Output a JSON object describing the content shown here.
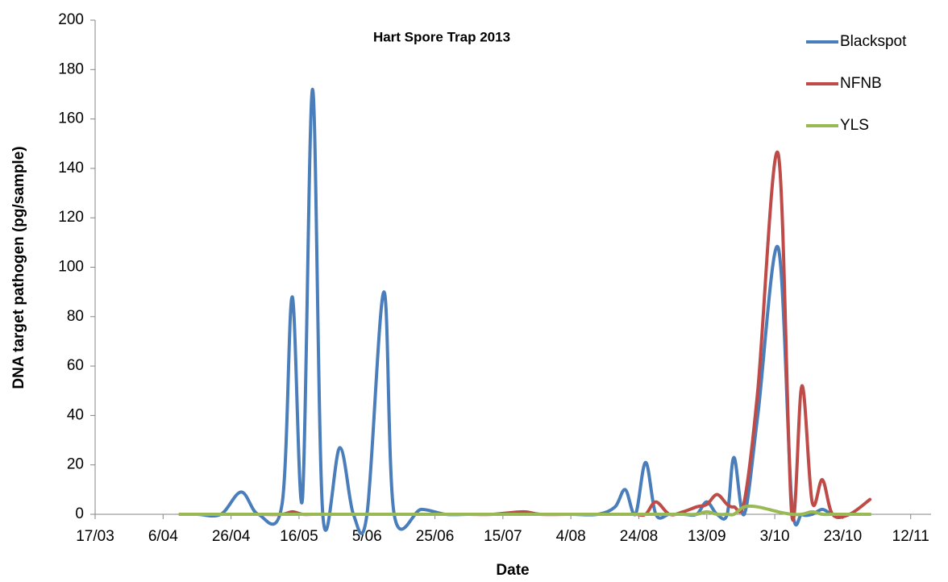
{
  "chart_data": {
    "type": "line",
    "title": "Hart Spore Trap 2013",
    "x_label": "Date",
    "y_label": "DNA target pathogen (pg/sample)",
    "x": [
      "11/04",
      "16/04",
      "23/04",
      "29/04",
      "4/05",
      "11/05",
      "14/05",
      "17/05",
      "20/05",
      "23/05",
      "28/05",
      "1/06",
      "5/06",
      "10/06",
      "13/06",
      "21/06",
      "28/06",
      "5/07",
      "12/07",
      "21/07",
      "26/07",
      "4/08",
      "12/08",
      "17/08",
      "20/08",
      "23/08",
      "26/08",
      "29/08",
      "2/09",
      "6/09",
      "10/09",
      "13/09",
      "16/09",
      "19/09",
      "21/09",
      "24/09",
      "28/09",
      "4/10",
      "8/10",
      "11/10",
      "14/10",
      "17/10",
      "20/10",
      "25/10",
      "31/10"
    ],
    "series": [
      {
        "name": "Blackspot",
        "color": "#4a7ebb",
        "values": [
          0,
          0,
          0,
          9,
          0,
          4,
          88,
          6,
          172,
          0,
          27,
          0,
          0,
          90,
          0,
          2,
          0,
          0,
          0,
          0,
          0,
          0,
          0,
          3,
          10,
          0,
          21,
          0,
          0,
          0,
          0,
          5,
          0,
          0,
          23,
          0,
          40,
          108,
          5,
          0,
          0,
          2,
          0,
          0,
          0
        ]
      },
      {
        "name": "NFNB",
        "color": "#be4b48",
        "values": [
          0,
          0,
          0,
          0,
          0,
          0,
          1,
          0,
          0,
          0,
          0,
          0,
          0,
          0,
          0,
          0,
          0,
          0,
          0,
          1,
          0,
          0,
          0,
          0,
          0,
          0,
          0,
          5,
          0,
          1,
          3,
          4,
          8,
          4,
          3,
          5,
          50,
          146,
          0,
          52,
          5,
          14,
          0,
          0,
          6
        ]
      },
      {
        "name": "YLS",
        "color": "#98b954",
        "values": [
          0,
          0,
          0,
          0,
          0,
          0,
          0,
          0,
          0,
          0,
          0,
          0,
          0,
          0,
          0,
          0,
          0,
          0,
          0,
          0,
          0,
          0,
          0,
          0,
          0,
          0,
          0,
          0,
          0,
          0,
          0,
          1,
          0,
          0,
          0,
          3,
          3,
          1,
          0,
          0,
          1,
          0,
          0,
          0,
          0
        ]
      }
    ],
    "xlim": [
      "17/03",
      "18/11"
    ],
    "xticks": [
      "17/03",
      "6/04",
      "26/04",
      "16/05",
      "5/06",
      "25/06",
      "15/07",
      "4/08",
      "24/08",
      "13/09",
      "3/10",
      "23/10",
      "12/11"
    ],
    "ylim": [
      0,
      200
    ],
    "yticks": [
      0,
      20,
      40,
      60,
      80,
      100,
      120,
      140,
      160,
      180,
      200
    ],
    "legend": "top-right"
  }
}
